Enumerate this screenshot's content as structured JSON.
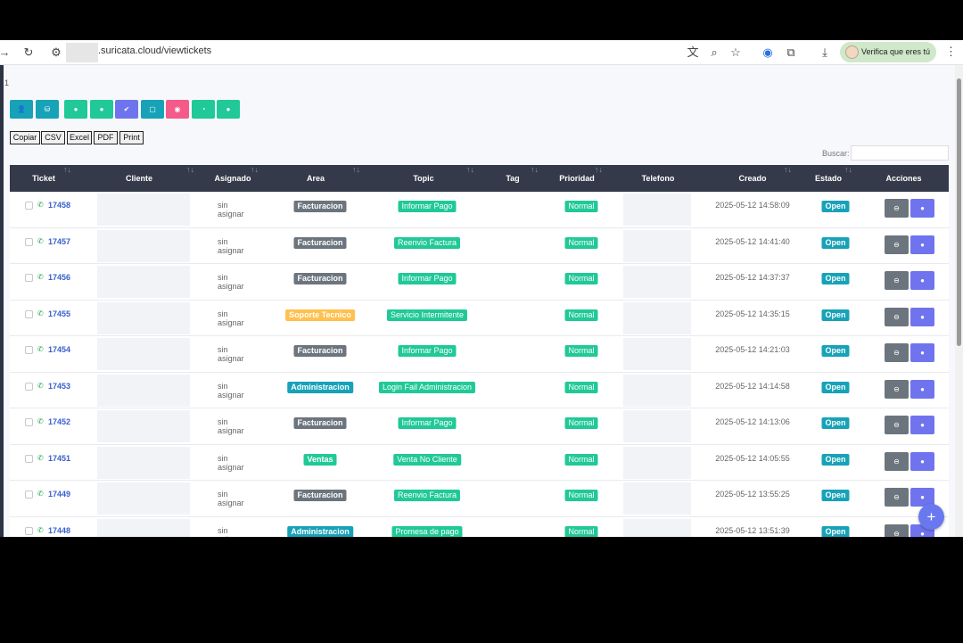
{
  "browser": {
    "url": ".suricata.cloud/viewtickets",
    "verify_label": "Verifica que eres tú"
  },
  "page_number": "1",
  "toolbar_colors": [
    "#17a2b8",
    "#17a2b8",
    "#20c997",
    "#20c997",
    "#6f74ee",
    "#17a2b8",
    "#f45b8a",
    "#20c997",
    "#20c997"
  ],
  "toolbar_icons": [
    "user-icon",
    "group-icon",
    "pin-icon",
    "pin-icon",
    "check-icon",
    "square-icon",
    "circle-icon",
    "clock-icon",
    "dot-icon"
  ],
  "export_buttons": [
    "Copiar",
    "CSV",
    "Excel",
    "PDF",
    "Print"
  ],
  "search": {
    "label": "Buscar:",
    "value": ""
  },
  "columns": [
    "Ticket",
    "Cliente",
    "Asignado",
    "Area",
    "Topic",
    "Tag",
    "Prioridad",
    "Telefono",
    "Creado",
    "Estado",
    "Acciones"
  ],
  "colors": {
    "Facturacion": "#6c757d",
    "Soporte Tecnico": "#ffc04d",
    "Administracion": "#17a2b8",
    "Ventas": "#20c997",
    "topic": "#20c997",
    "priority": "#20c997",
    "estado": "#17a2b8"
  },
  "rows": [
    {
      "ticket": "17458",
      "asignado": "sin asignar",
      "area": "Facturacion",
      "topic": "Informar Pago",
      "prioridad": "Normal",
      "creado": "2025-05-12 14:58:09",
      "estado": "Open"
    },
    {
      "ticket": "17457",
      "asignado": "sin asignar",
      "area": "Facturacion",
      "topic": "Reenvio Factura",
      "prioridad": "Normal",
      "creado": "2025-05-12 14:41:40",
      "estado": "Open"
    },
    {
      "ticket": "17456",
      "asignado": "sin asignar",
      "area": "Facturacion",
      "topic": "Informar Pago",
      "prioridad": "Normal",
      "creado": "2025-05-12 14:37:37",
      "estado": "Open"
    },
    {
      "ticket": "17455",
      "asignado": "sin asignar",
      "area": "Soporte Tecnico",
      "topic": "Servicio Intermitente",
      "prioridad": "Normal",
      "creado": "2025-05-12 14:35:15",
      "estado": "Open"
    },
    {
      "ticket": "17454",
      "asignado": "sin asignar",
      "area": "Facturacion",
      "topic": "Informar Pago",
      "prioridad": "Normal",
      "creado": "2025-05-12 14:21:03",
      "estado": "Open"
    },
    {
      "ticket": "17453",
      "asignado": "sin asignar",
      "area": "Administracion",
      "topic": "Login Fail Administracion",
      "prioridad": "Normal",
      "creado": "2025-05-12 14:14:58",
      "estado": "Open"
    },
    {
      "ticket": "17452",
      "asignado": "sin asignar",
      "area": "Facturacion",
      "topic": "Informar Pago",
      "prioridad": "Normal",
      "creado": "2025-05-12 14:13:06",
      "estado": "Open"
    },
    {
      "ticket": "17451",
      "asignado": "sin asignar",
      "area": "Ventas",
      "topic": "Venta No Cliente",
      "prioridad": "Normal",
      "creado": "2025-05-12 14:05:55",
      "estado": "Open"
    },
    {
      "ticket": "17449",
      "asignado": "sin asignar",
      "area": "Facturacion",
      "topic": "Reenvio Factura",
      "prioridad": "Normal",
      "creado": "2025-05-12 13:55:25",
      "estado": "Open"
    },
    {
      "ticket": "17448",
      "asignado": "sin asignar",
      "area": "Administracion",
      "topic": "Promesa de pago",
      "prioridad": "Normal",
      "creado": "2025-05-12 13:51:39",
      "estado": "Open"
    }
  ]
}
